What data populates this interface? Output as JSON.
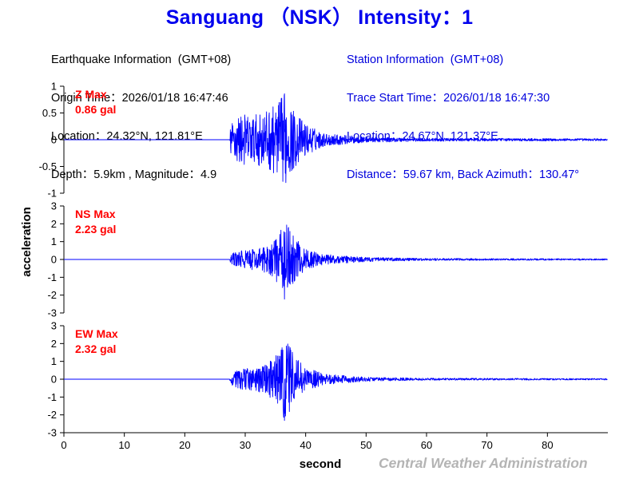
{
  "header": {
    "title": "Sanguang （NSK） Intensity：1"
  },
  "earthquake_info": {
    "heading": "Earthquake Information  (GMT+08)",
    "origin_time": "Origin Time：2026/01/18 16:47:46",
    "location": "Location：24.32°N, 121.81°E",
    "depth_magnitude": "Depth：5.9km , Magnitude：4.9"
  },
  "station_info": {
    "heading": "Station Information  (GMT+08)",
    "trace_start": "Trace Start Time：2026/01/18 16:47:30",
    "location": "Location：24.67°N, 121.37°E",
    "distance": "Distance：59.67 km, Back Azimuth：130.47°"
  },
  "credit": "Central Weather Administration",
  "colors": {
    "trace": "#0000ff",
    "max_label": "#ff0000",
    "title": "#0000ee",
    "station_text": "#0000dd",
    "credit": "#b4b4b4"
  },
  "chart_data": {
    "type": "line",
    "xlabel": "second",
    "ylabel": "acceleration",
    "xlim": [
      0,
      90
    ],
    "x_ticks": [
      "0",
      "10",
      "20",
      "30",
      "40",
      "50",
      "60",
      "70",
      "80"
    ],
    "p_arrival_s": 27.5,
    "peak_s": 36.5,
    "panels": [
      {
        "component": "Z",
        "max_title": "Z Max",
        "max_value": "0.86 gal",
        "ylim": [
          -1,
          1
        ],
        "y_ticks": [
          "1",
          "0.5",
          "0",
          "-0.5",
          "-1"
        ],
        "y_tick_values": [
          1,
          0.5,
          0,
          -0.5,
          -1
        ],
        "envelope": [
          {
            "t": 0,
            "amp": 0.0
          },
          {
            "t": 27.4,
            "amp": 0.0
          },
          {
            "t": 27.6,
            "amp": 0.3
          },
          {
            "t": 29,
            "amp": 0.5
          },
          {
            "t": 31,
            "amp": 0.45
          },
          {
            "t": 33,
            "amp": 0.5
          },
          {
            "t": 35,
            "amp": 0.65
          },
          {
            "t": 36.5,
            "amp": 0.86
          },
          {
            "t": 38,
            "amp": 0.55
          },
          {
            "t": 40,
            "amp": 0.3
          },
          {
            "t": 43,
            "amp": 0.12
          },
          {
            "t": 50,
            "amp": 0.05
          },
          {
            "t": 60,
            "amp": 0.03
          },
          {
            "t": 90,
            "amp": 0.02
          }
        ]
      },
      {
        "component": "NS",
        "max_title": "NS Max",
        "max_value": "2.23 gal",
        "ylim": [
          -3,
          3
        ],
        "y_ticks": [
          "3",
          "2",
          "1",
          "0",
          "-1",
          "-2",
          "-3"
        ],
        "y_tick_values": [
          3,
          2,
          1,
          0,
          -1,
          -2,
          -3
        ],
        "envelope": [
          {
            "t": 0,
            "amp": 0.0
          },
          {
            "t": 27.4,
            "amp": 0.0
          },
          {
            "t": 27.6,
            "amp": 0.3
          },
          {
            "t": 29,
            "amp": 0.5
          },
          {
            "t": 32,
            "amp": 0.6
          },
          {
            "t": 34,
            "amp": 0.8
          },
          {
            "t": 35.5,
            "amp": 1.4
          },
          {
            "t": 36.5,
            "amp": 2.23
          },
          {
            "t": 38,
            "amp": 1.3
          },
          {
            "t": 40,
            "amp": 0.6
          },
          {
            "t": 43,
            "amp": 0.3
          },
          {
            "t": 50,
            "amp": 0.12
          },
          {
            "t": 60,
            "amp": 0.06
          },
          {
            "t": 90,
            "amp": 0.04
          }
        ]
      },
      {
        "component": "EW",
        "max_title": "EW Max",
        "max_value": "2.32 gal",
        "ylim": [
          -3,
          3
        ],
        "y_ticks": [
          "3",
          "2",
          "1",
          "0",
          "-1",
          "-2",
          "-3"
        ],
        "y_tick_values": [
          3,
          2,
          1,
          0,
          -1,
          -2,
          -3
        ],
        "envelope": [
          {
            "t": 0,
            "amp": 0.0
          },
          {
            "t": 27.4,
            "amp": 0.0
          },
          {
            "t": 27.6,
            "amp": 0.3
          },
          {
            "t": 29,
            "amp": 0.55
          },
          {
            "t": 32,
            "amp": 0.7
          },
          {
            "t": 34,
            "amp": 1.0
          },
          {
            "t": 35.5,
            "amp": 1.6
          },
          {
            "t": 36.5,
            "amp": 2.32
          },
          {
            "t": 38,
            "amp": 1.5
          },
          {
            "t": 40,
            "amp": 0.7
          },
          {
            "t": 43,
            "amp": 0.3
          },
          {
            "t": 50,
            "amp": 0.12
          },
          {
            "t": 60,
            "amp": 0.06
          },
          {
            "t": 90,
            "amp": 0.04
          }
        ]
      }
    ]
  }
}
